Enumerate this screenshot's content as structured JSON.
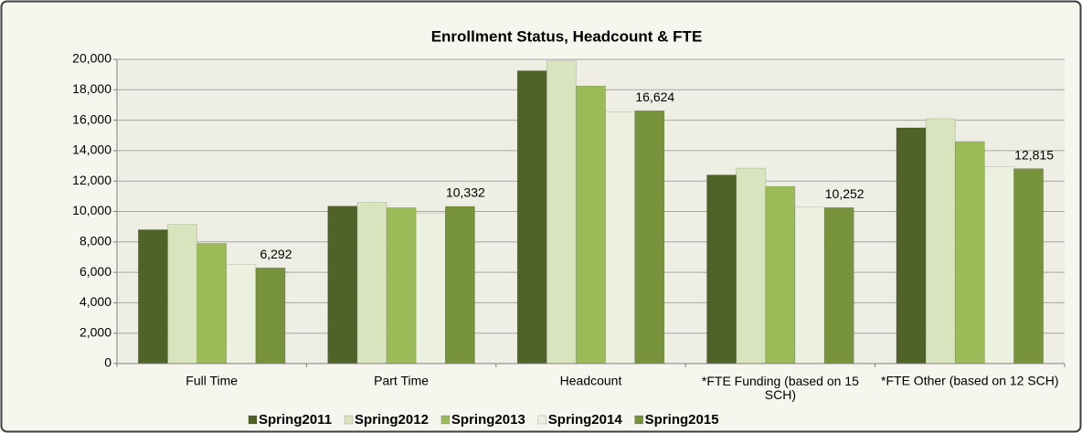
{
  "chart_data": {
    "type": "bar",
    "title": "Enrollment Status, Headcount  & FTE",
    "categories": [
      "Full Time",
      "Part Time",
      "Headcount",
      "*FTE Funding (based on 15 SCH)",
      "*FTE Other (based on 12 SCH)"
    ],
    "series": [
      {
        "name": "Spring2011",
        "color": "#4f6228",
        "values": [
          8800,
          10350,
          19250,
          12400,
          15500
        ]
      },
      {
        "name": "Spring2012",
        "color": "#d7e4bd",
        "values": [
          9150,
          10600,
          19900,
          12850,
          16100
        ]
      },
      {
        "name": "Spring2013",
        "color": "#9bbb59",
        "values": [
          7900,
          10250,
          18250,
          11650,
          14600
        ]
      },
      {
        "name": "Spring2014",
        "color": "#ebf1de",
        "values": [
          6500,
          9900,
          16550,
          10300,
          12950
        ]
      },
      {
        "name": "Spring2015",
        "color": "#77933c",
        "values": [
          6292,
          10332,
          16624,
          10252,
          12815
        ],
        "value_labels": [
          "6,292",
          "10,332",
          "16,624",
          "10,252",
          "12,815"
        ]
      }
    ],
    "ylim": [
      0,
      20000
    ],
    "yticks": [
      0,
      {
        "value": 2000,
        "label": "2,000"
      },
      {
        "value": 4000,
        "label": "4,000"
      },
      {
        "value": 6000,
        "label": "6,000"
      },
      {
        "value": 8000,
        "label": "8,000"
      },
      {
        "value": 10000,
        "label": "10,000"
      },
      {
        "value": 12000,
        "label": "12,000"
      },
      {
        "value": 14000,
        "label": "14,000"
      },
      {
        "value": 16000,
        "label": "16,000"
      },
      {
        "value": 18000,
        "label": "18,000"
      },
      {
        "value": 20000,
        "label": "20,000"
      }
    ],
    "grid": true,
    "legend": "bottom"
  }
}
